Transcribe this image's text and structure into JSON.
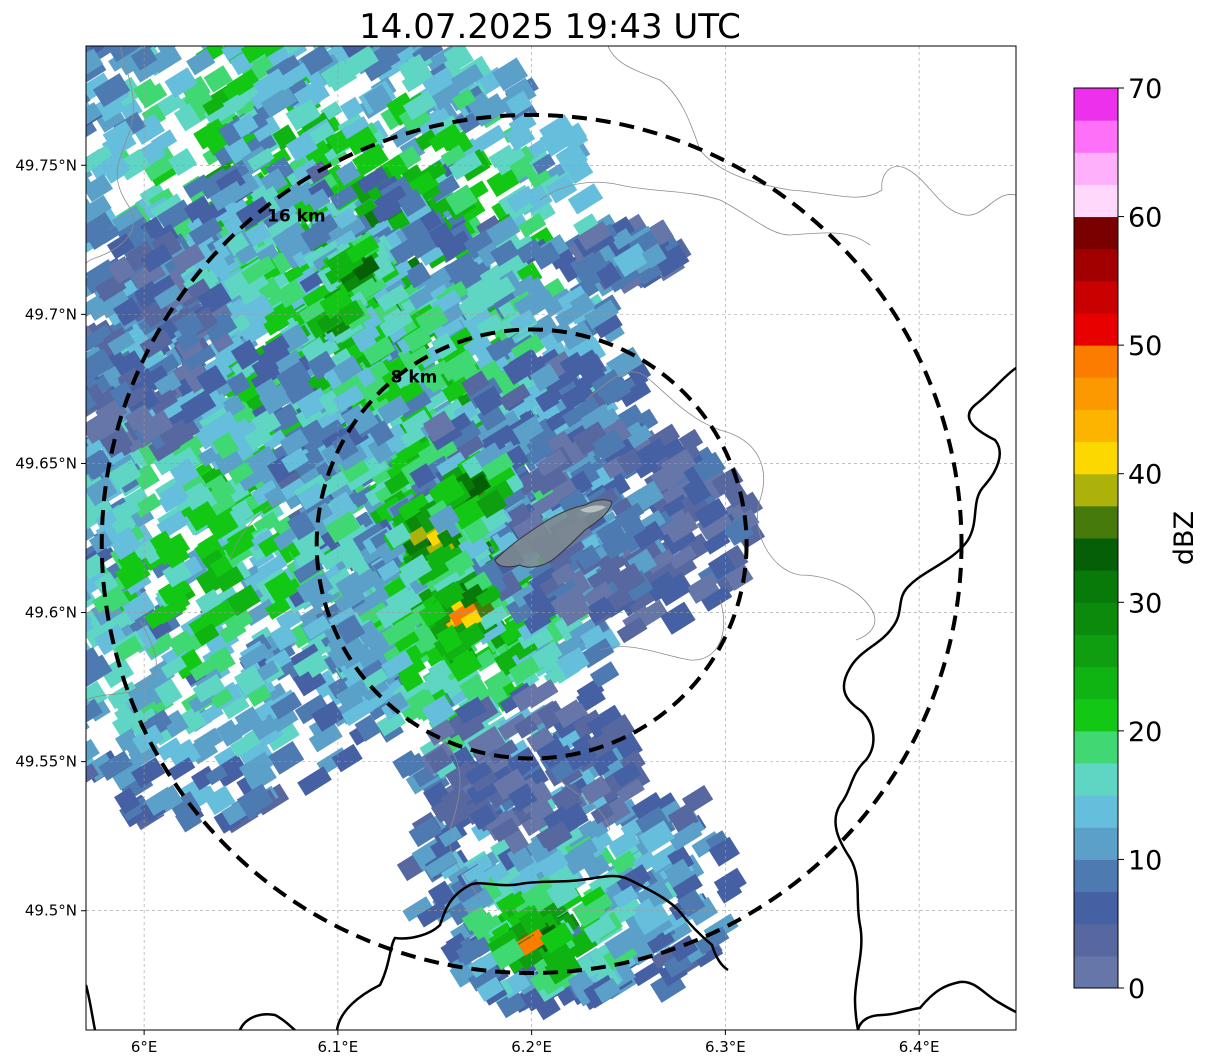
{
  "title": "14.07.2025 19:43 UTC",
  "map": {
    "lon_range": [
      5.97,
      6.45
    ],
    "lat_range": [
      49.46,
      49.79
    ],
    "center": {
      "lon": 6.2,
      "lat": 49.623
    },
    "x_ticks": [
      {
        "value": 6.0,
        "label": "6°E"
      },
      {
        "value": 6.1,
        "label": "6.1°E"
      },
      {
        "value": 6.2,
        "label": "6.2°E"
      },
      {
        "value": 6.3,
        "label": "6.3°E"
      },
      {
        "value": 6.4,
        "label": "6.4°E"
      }
    ],
    "y_ticks": [
      {
        "value": 49.5,
        "label": "49.5°N"
      },
      {
        "value": 49.55,
        "label": "49.55°N"
      },
      {
        "value": 49.6,
        "label": "49.6°N"
      },
      {
        "value": 49.65,
        "label": "49.65°N"
      },
      {
        "value": 49.7,
        "label": "49.7°N"
      },
      {
        "value": 49.75,
        "label": "49.75°N"
      }
    ],
    "range_rings": [
      {
        "km": 8,
        "label": "8 km"
      },
      {
        "km": 16,
        "label": "16 km"
      }
    ],
    "grid": true
  },
  "colorbar": {
    "label": "dBZ",
    "min": 0,
    "max": 70,
    "ticks": [
      {
        "value": 0,
        "label": "0"
      },
      {
        "value": 10,
        "label": "10"
      },
      {
        "value": 20,
        "label": "20"
      },
      {
        "value": 30,
        "label": "30"
      },
      {
        "value": 40,
        "label": "40"
      },
      {
        "value": 50,
        "label": "50"
      },
      {
        "value": 60,
        "label": "60"
      },
      {
        "value": 70,
        "label": "70"
      }
    ],
    "colors": [
      "#6676a8",
      "#5767a0",
      "#4660a4",
      "#4e7ab2",
      "#5ba0c8",
      "#66bedd",
      "#5fd6c3",
      "#3fd873",
      "#12c814",
      "#10b412",
      "#0f9e10",
      "#0b8a0c",
      "#087a0a",
      "#045f06",
      "#467a0a",
      "#adb20a",
      "#fcd800",
      "#fcb400",
      "#fc9800",
      "#fc7c00",
      "#e80000",
      "#c80000",
      "#a20000",
      "#7a0000",
      "#ffd8fc",
      "#ffb0fa",
      "#ff70f8",
      "#ec30ec"
    ]
  },
  "cells": [
    {
      "lon": 6.06,
      "lat": 49.75,
      "rx": 8,
      "ry": 9,
      "dbz": 24
    },
    {
      "lon": 6.13,
      "lat": 49.72,
      "rx": 8,
      "ry": 8,
      "dbz": 30
    },
    {
      "lon": 6.08,
      "lat": 49.66,
      "rx": 9,
      "ry": 10,
      "dbz": 25
    },
    {
      "lon": 6.03,
      "lat": 49.61,
      "rx": 8,
      "ry": 9,
      "dbz": 22
    },
    {
      "lon": 6.16,
      "lat": 49.67,
      "rx": 7,
      "ry": 7,
      "dbz": 24
    },
    {
      "lon": 6.16,
      "lat": 49.62,
      "rx": 6,
      "ry": 6,
      "dbz": 30
    },
    {
      "lon": 6.17,
      "lat": 49.59,
      "rx": 5,
      "ry": 6,
      "dbz": 26
    },
    {
      "lon": 6.21,
      "lat": 49.64,
      "rx": 5,
      "ry": 5,
      "dbz": 14
    },
    {
      "lon": 6.25,
      "lat": 49.63,
      "rx": 5,
      "ry": 4,
      "dbz": 8
    },
    {
      "lon": 6.22,
      "lat": 49.51,
      "rx": 6,
      "ry": 5,
      "dbz": 18
    },
    {
      "lon": 6.21,
      "lat": 49.495,
      "rx": 4,
      "ry": 3,
      "dbz": 28
    },
    {
      "lon": 6.0,
      "lat": 49.69,
      "rx": 3,
      "ry": 4,
      "dbz": 10
    },
    {
      "lon": 6.25,
      "lat": 49.72,
      "rx": 2,
      "ry": 1,
      "dbz": 12
    },
    {
      "lon": 6.2,
      "lat": 49.55,
      "rx": 4,
      "ry": 3,
      "dbz": 5
    },
    {
      "lon": 6.15,
      "lat": 49.625,
      "rx": 1.5,
      "ry": 1.5,
      "dbz": 44
    },
    {
      "lon": 6.165,
      "lat": 49.6,
      "rx": 1.2,
      "ry": 1.2,
      "dbz": 48
    },
    {
      "lon": 6.2,
      "lat": 49.49,
      "rx": 1.2,
      "ry": 0.8,
      "dbz": 50
    },
    {
      "lon": 6.11,
      "lat": 49.715,
      "rx": 1.2,
      "ry": 1,
      "dbz": 37
    },
    {
      "lon": 6.1,
      "lat": 49.7,
      "rx": 0.8,
      "ry": 0.6,
      "dbz": 40
    },
    {
      "lon": 6.17,
      "lat": 49.64,
      "rx": 1.5,
      "ry": 1.5,
      "dbz": 37
    }
  ]
}
